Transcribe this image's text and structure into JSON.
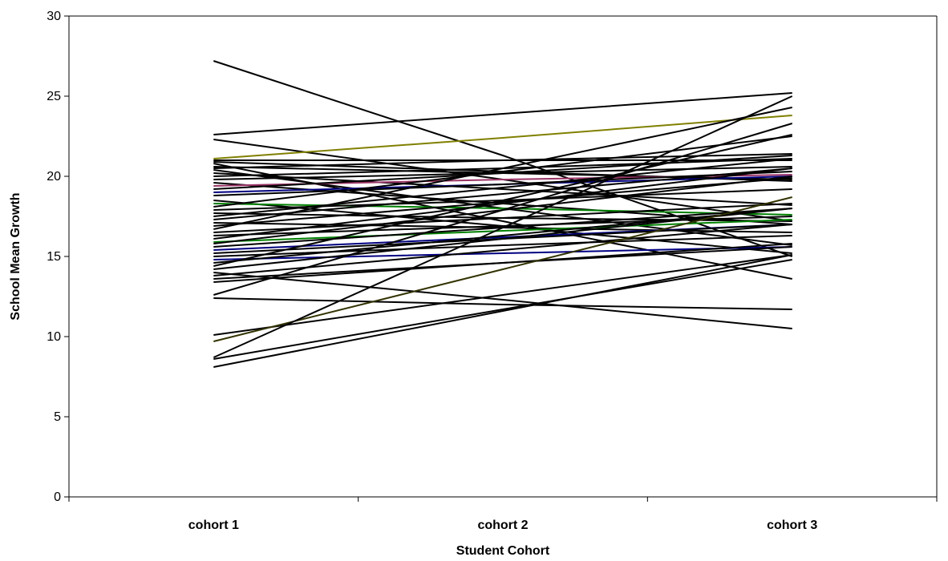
{
  "chart_data": {
    "type": "line",
    "title": "",
    "xlabel": "Student Cohort",
    "ylabel": "School Mean Growth",
    "categories": [
      "cohort 1",
      "cohort 2",
      "cohort 3"
    ],
    "ylim": [
      0,
      30
    ],
    "yticks": [
      0,
      5,
      10,
      15,
      20,
      25,
      30
    ],
    "grid": false,
    "legend": "none",
    "default_color": "#000000",
    "series": [
      {
        "values": [
          27.2,
          21.3,
          15.0
        ]
      },
      {
        "values": [
          22.6,
          23.9,
          25.2
        ]
      },
      {
        "values": [
          22.3,
          19.8,
          17.2
        ],
        "color": "#000000"
      },
      {
        "values": [
          21.1,
          22.4,
          23.8
        ],
        "color": "#808000"
      },
      {
        "values": [
          21.0,
          21.0,
          21.0
        ]
      },
      {
        "values": [
          20.9,
          20.3,
          19.7
        ]
      },
      {
        "values": [
          20.8,
          17.2,
          13.6
        ]
      },
      {
        "values": [
          20.6,
          20.2,
          19.8
        ]
      },
      {
        "values": [
          20.5,
          21.0,
          21.4
        ]
      },
      {
        "values": [
          20.4,
          18.0,
          15.7
        ]
      },
      {
        "values": [
          20.2,
          19.2,
          18.2
        ]
      },
      {
        "values": [
          20.0,
          20.5,
          21.1
        ]
      },
      {
        "values": [
          19.8,
          20.2,
          20.6
        ]
      },
      {
        "values": [
          19.6,
          18.3,
          17.0
        ]
      },
      {
        "values": [
          19.4,
          19.8,
          20.1
        ],
        "color": "#993366"
      },
      {
        "values": [
          19.2,
          20.2,
          21.3
        ]
      },
      {
        "values": [
          19.0,
          19.5,
          20.0
        ],
        "color": "#000080"
      },
      {
        "values": [
          18.8,
          19.5,
          20.3
        ]
      },
      {
        "values": [
          18.5,
          16.9,
          15.2
        ]
      },
      {
        "values": [
          18.3,
          18.0,
          17.6
        ],
        "color": "#008000"
      },
      {
        "values": [
          18.1,
          20.3,
          22.5
        ]
      },
      {
        "values": [
          17.9,
          18.5,
          19.2
        ]
      },
      {
        "values": [
          17.7,
          17.4,
          17.2
        ]
      },
      {
        "values": [
          17.5,
          19.3,
          21.1
        ]
      },
      {
        "values": [
          17.3,
          18.9,
          20.5
        ]
      },
      {
        "values": [
          17.1,
          16.8,
          16.5
        ]
      },
      {
        "values": [
          16.9,
          18.4,
          19.9
        ]
      },
      {
        "values": [
          16.7,
          20.5,
          24.3
        ]
      },
      {
        "values": [
          16.5,
          17.4,
          18.3
        ]
      },
      {
        "values": [
          16.3,
          16.9,
          17.5
        ]
      },
      {
        "values": [
          16.1,
          18.3,
          20.5
        ]
      },
      {
        "values": [
          15.9,
          16.6,
          17.3
        ],
        "color": "#008000"
      },
      {
        "values": [
          15.8,
          17.9,
          20.0
        ]
      },
      {
        "values": [
          15.6,
          16.8,
          18.0
        ]
      },
      {
        "values": [
          15.4,
          16.2,
          17.0
        ],
        "color": "#000080"
      },
      {
        "values": [
          15.2,
          16.1,
          17.0
        ]
      },
      {
        "values": [
          15.0,
          15.7,
          16.3
        ]
      },
      {
        "values": [
          14.8,
          15.2,
          15.6
        ],
        "color": "#000080"
      },
      {
        "values": [
          14.6,
          16.3,
          18.0
        ]
      },
      {
        "values": [
          14.4,
          18.5,
          22.6
        ]
      },
      {
        "values": [
          14.2,
          16.1,
          18.0
        ]
      },
      {
        "values": [
          14.0,
          12.3,
          10.5
        ]
      },
      {
        "values": [
          13.8,
          15.4,
          17.0
        ]
      },
      {
        "values": [
          13.6,
          14.6,
          15.6
        ]
      },
      {
        "values": [
          13.4,
          14.6,
          15.8
        ]
      },
      {
        "values": [
          12.6,
          17.9,
          23.3
        ]
      },
      {
        "values": [
          12.4,
          12.0,
          11.7
        ]
      },
      {
        "values": [
          10.1,
          12.6,
          15.1
        ]
      },
      {
        "values": [
          9.7,
          14.2,
          18.7
        ],
        "color": "#333300"
      },
      {
        "values": [
          8.7,
          16.8,
          25.0
        ]
      },
      {
        "values": [
          8.6,
          11.7,
          14.8
        ]
      },
      {
        "values": [
          8.1,
          11.6,
          15.1
        ]
      }
    ]
  }
}
